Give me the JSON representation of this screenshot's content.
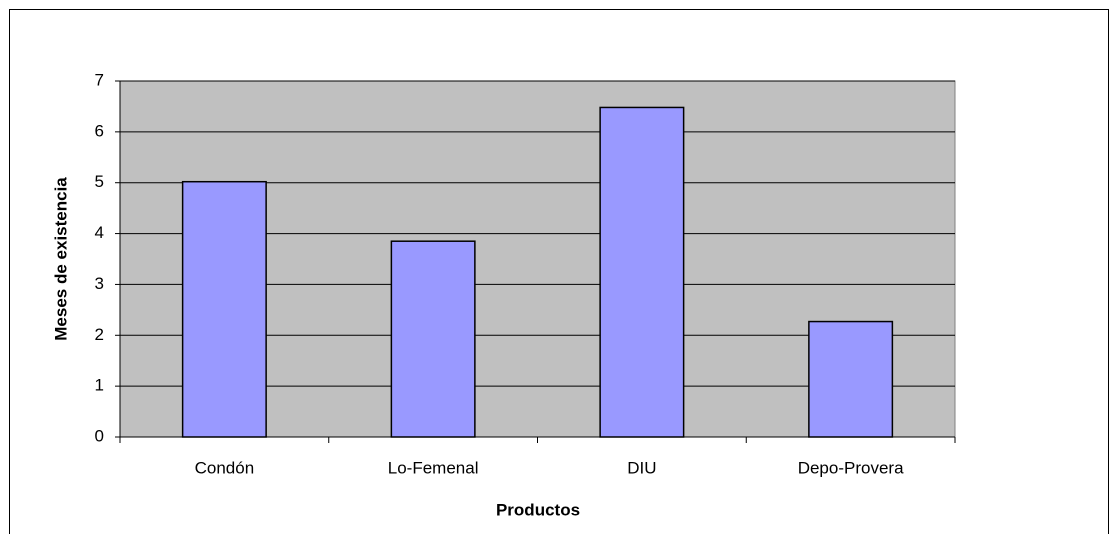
{
  "chart_data": {
    "type": "bar",
    "x_label": "Productos",
    "y_label": "Meses de existencia",
    "categories": [
      "Condón",
      "Lo-Femenal",
      "DIU",
      "Depo-Provera"
    ],
    "values": [
      5.02,
      3.85,
      6.48,
      2.27
    ],
    "color": "#9999ff",
    "ylim": [
      0,
      7
    ],
    "yticks": [
      0,
      1,
      2,
      3,
      4,
      5,
      6,
      7
    ],
    "grid": true
  }
}
